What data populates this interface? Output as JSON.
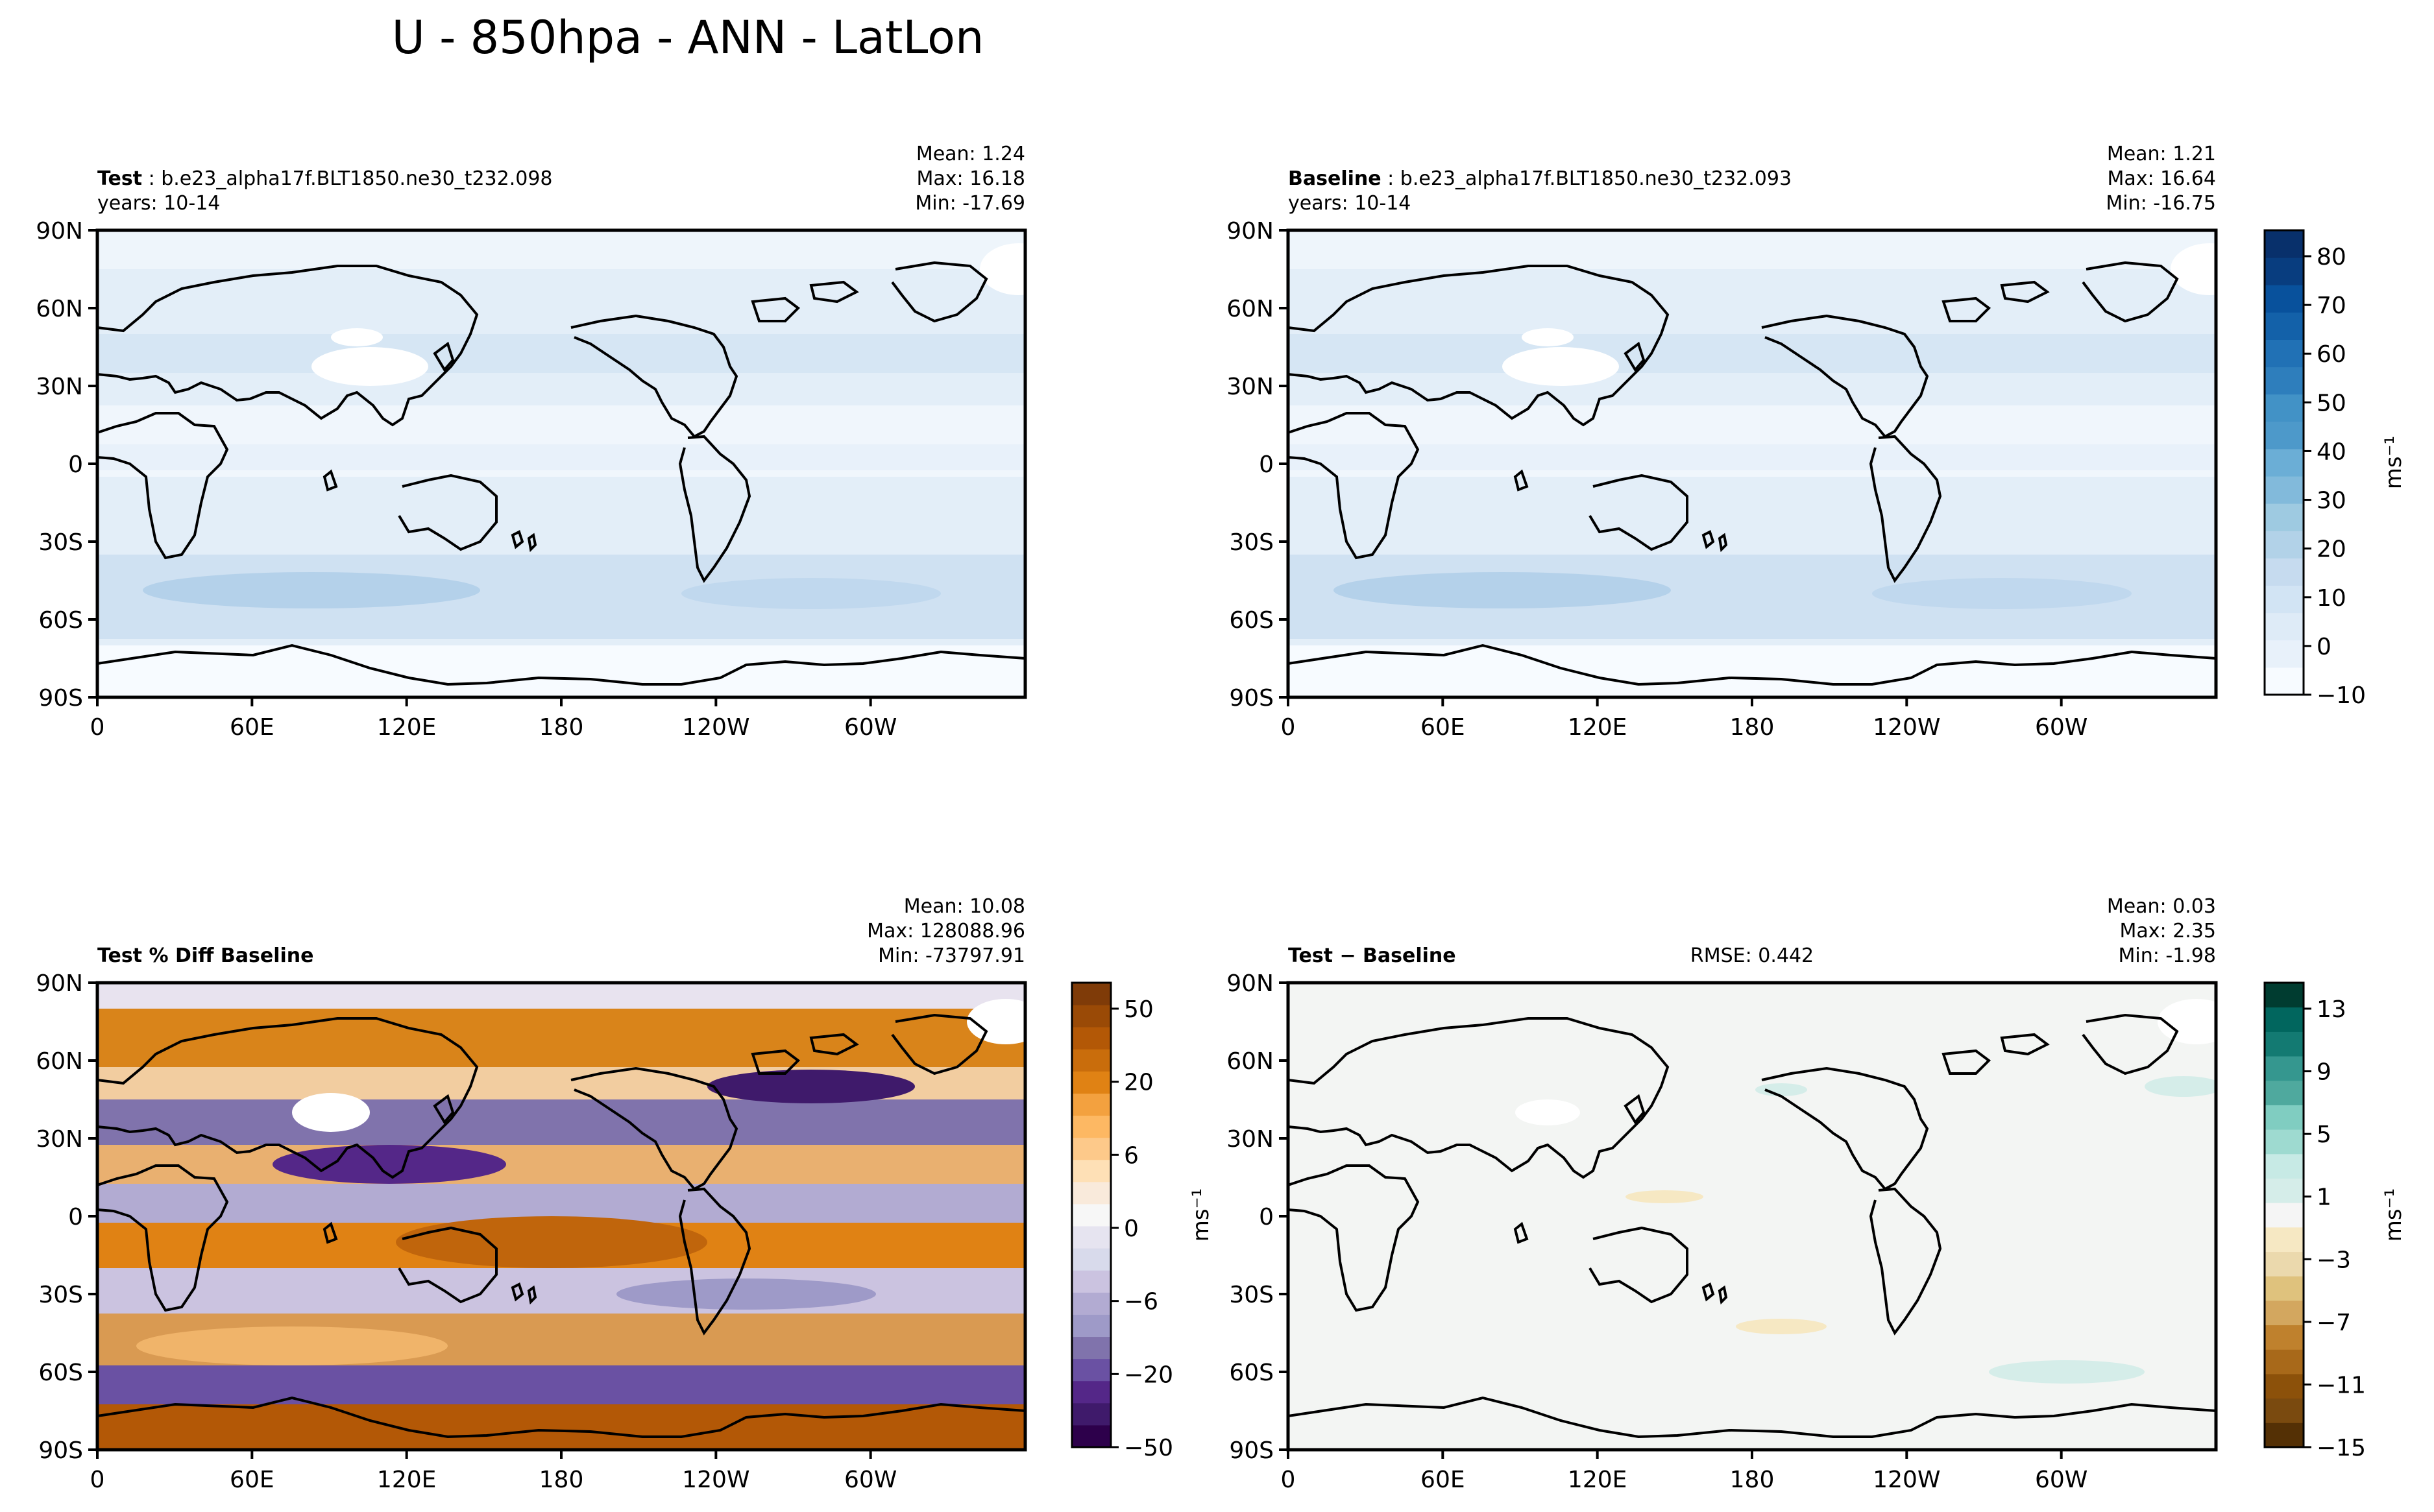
{
  "title": "U - 850hpa - ANN - LatLon",
  "panels": {
    "test": {
      "label_bold": "Test",
      "label_rest": " : b.e23_alpha17f.BLT1850.ne30_t232.098",
      "years": "years: 10-14",
      "mean": "Mean:  1.24",
      "max": "Max: 16.18",
      "min": "Min: -17.69"
    },
    "baseline": {
      "label_bold": "Baseline",
      "label_rest": " : b.e23_alpha17f.BLT1850.ne30_t232.093",
      "years": "years: 10-14",
      "mean": "Mean:  1.21",
      "max": "Max: 16.64",
      "min": "Min: -16.75"
    },
    "pctdiff": {
      "label_bold": "Test % Diff Baseline",
      "mean": "Mean: 10.08",
      "max": "Max: 128088.96",
      "min": "Min: -73797.91"
    },
    "diff": {
      "label_bold": "Test − Baseline",
      "rmse": "RMSE: 0.442",
      "mean": "Mean:  0.03",
      "max": "Max:  2.35",
      "min": "Min: -1.98"
    }
  },
  "axes": {
    "lat_ticks": [
      "90N",
      "60N",
      "30N",
      "0",
      "30S",
      "60S",
      "90S"
    ],
    "lon_ticks": [
      "0",
      "60E",
      "120E",
      "180",
      "120W",
      "60W"
    ]
  },
  "colorbars": {
    "field": {
      "ticks": [
        "80",
        "70",
        "60",
        "50",
        "40",
        "30",
        "20",
        "10",
        "0",
        "−10"
      ],
      "unit": "ms⁻¹",
      "colors": [
        "#f7fbff",
        "#e8f1fa",
        "#deebf7",
        "#d2e4f4",
        "#c6dbef",
        "#b2d2e8",
        "#9ecae1",
        "#82badb",
        "#6baed6",
        "#4d99ca",
        "#4292c6",
        "#2e7ebc",
        "#2171b5",
        "#1361a9",
        "#08519c",
        "#083d7f",
        "#08306b"
      ]
    },
    "pct": {
      "ticks": [
        "50",
        "20",
        "6",
        "0",
        "−6",
        "−20",
        "−50"
      ],
      "unit": "ms⁻¹",
      "colors": [
        "#2d004b",
        "#3f1a6b",
        "#542788",
        "#6a51a3",
        "#8073ac",
        "#9e9ac8",
        "#b2abd2",
        "#cbc3e0",
        "#d8daeb",
        "#e6e4f0",
        "#f7f7f7",
        "#f9eadb",
        "#fee0b6",
        "#fdc98a",
        "#fdb863",
        "#f3a13f",
        "#e08214",
        "#c96d0c",
        "#b35806",
        "#9a4a06",
        "#7f3b08"
      ]
    },
    "diff": {
      "ticks": [
        "13",
        "9",
        "5",
        "1",
        "−3",
        "−7",
        "−11",
        "−15"
      ],
      "unit": "ms⁻¹",
      "colors": [
        "#543005",
        "#7a4a0f",
        "#8c510a",
        "#a8691a",
        "#bf812d",
        "#d3a75f",
        "#dfc27d",
        "#ebd9ad",
        "#f6e8c3",
        "#f5f5f5",
        "#d5ede9",
        "#c7eae5",
        "#9edad0",
        "#80cdc1",
        "#4fa99e",
        "#35978f",
        "#137a72",
        "#01665e",
        "#003c30"
      ]
    }
  }
}
